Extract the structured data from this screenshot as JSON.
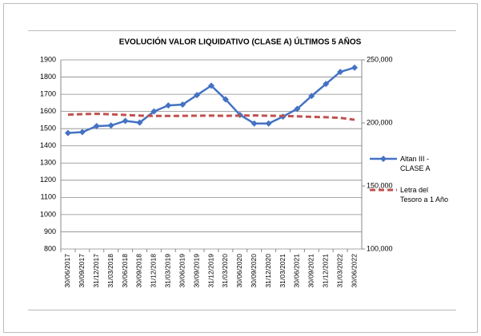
{
  "chart_data": {
    "type": "line",
    "title": "EVOLUCIÓN VALOR LIQUIDATIVO (CLASE A) ÚLTIMOS 5 AÑOS",
    "categories": [
      "30/06/2017",
      "30/09/2017",
      "31/12/2017",
      "31/03/2018",
      "30/06/2018",
      "30/09/2018",
      "31/12/2018",
      "31/03/2019",
      "30/06/2019",
      "30/09/2019",
      "31/12/2019",
      "31/03/2020",
      "30/06/2020",
      "30/09/2020",
      "31/12/2020",
      "31/03/2021",
      "30/06/2021",
      "30/09/2021",
      "31/12/2021",
      "31/03/2022",
      "30/06/2022"
    ],
    "series": [
      {
        "name": "Altan III - CLASE A",
        "color": "#4472c4",
        "values": [
          1475,
          1480,
          1515,
          1518,
          1545,
          1535,
          1600,
          1635,
          1640,
          1695,
          1750,
          1670,
          1580,
          1530,
          1530,
          1570,
          1615,
          1690,
          1760,
          1830,
          1855
        ]
      },
      {
        "name": "Letra del Tesoro a 1 Año",
        "color": "#c0504d",
        "axis": "y2",
        "dashed": true,
        "values": [
          206500,
          207000,
          207200,
          206800,
          206300,
          205800,
          205500,
          205500,
          205600,
          205700,
          205800,
          205600,
          205800,
          205900,
          205700,
          205500,
          205200,
          204800,
          204500,
          204000,
          202500
        ]
      }
    ],
    "ylim": [
      800,
      1900
    ],
    "yticks": [
      800,
      900,
      1000,
      1100,
      1200,
      1300,
      1400,
      1500,
      1600,
      1700,
      1800,
      1900
    ],
    "y2lim": [
      100000,
      250000
    ],
    "y2ticks": [
      {
        "value": 100000,
        "label": "100,000"
      },
      {
        "value": 150000,
        "label": "150,000"
      },
      {
        "value": 200000,
        "label": "200,000"
      },
      {
        "value": 250000,
        "label": "250,000"
      }
    ],
    "grid": true,
    "legend": "right"
  }
}
